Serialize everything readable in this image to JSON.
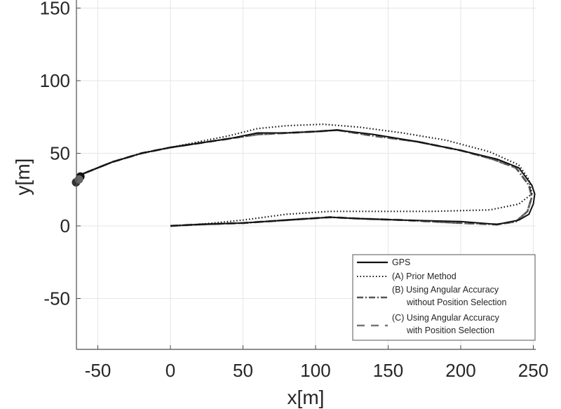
{
  "chart_data": {
    "type": "line",
    "title": "",
    "xlabel": "x[m]",
    "ylabel": "y[m]",
    "xlim": [
      -65,
      252
    ],
    "ylim": [
      -86,
      152
    ],
    "xticks": [
      -50,
      0,
      50,
      100,
      150,
      200,
      250
    ],
    "yticks": [
      -50,
      0,
      50,
      100,
      150
    ],
    "xtick_labels": [
      "-50",
      "0",
      "50",
      "100",
      "150",
      "200",
      "250"
    ],
    "ytick_labels": [
      "-50",
      "0",
      "50",
      "100",
      "150"
    ],
    "grid": true,
    "legend_position": "lower right",
    "series": [
      {
        "name": "GPS",
        "style": "solid",
        "color": "#111111",
        "points": [
          [
            0,
            0
          ],
          [
            20,
            1
          ],
          [
            50,
            2
          ],
          [
            80,
            4
          ],
          [
            110,
            6
          ],
          [
            130,
            5
          ],
          [
            160,
            4
          ],
          [
            200,
            3
          ],
          [
            225,
            1
          ],
          [
            240,
            4
          ],
          [
            247,
            8
          ],
          [
            250,
            15
          ],
          [
            251,
            22
          ],
          [
            249,
            28
          ],
          [
            240,
            40
          ],
          [
            225,
            46
          ],
          [
            200,
            52
          ],
          [
            170,
            58
          ],
          [
            140,
            63
          ],
          [
            115,
            66
          ],
          [
            100,
            65
          ],
          [
            80,
            64
          ],
          [
            60,
            64
          ],
          [
            40,
            60
          ],
          [
            20,
            57
          ],
          [
            0,
            54
          ],
          [
            -20,
            50
          ],
          [
            -40,
            44
          ],
          [
            -60,
            36
          ],
          [
            -62,
            35
          ]
        ]
      },
      {
        "name": "(A) Prior Method",
        "style": "dotted",
        "color": "#111111",
        "points": [
          [
            0,
            0
          ],
          [
            20,
            1
          ],
          [
            50,
            4
          ],
          [
            80,
            8
          ],
          [
            110,
            10
          ],
          [
            140,
            10
          ],
          [
            180,
            10
          ],
          [
            220,
            11
          ],
          [
            240,
            15
          ],
          [
            249,
            22
          ],
          [
            247,
            32
          ],
          [
            240,
            42
          ],
          [
            220,
            51
          ],
          [
            190,
            59
          ],
          [
            160,
            64
          ],
          [
            130,
            68
          ],
          [
            105,
            70
          ],
          [
            80,
            69
          ],
          [
            60,
            67
          ],
          [
            40,
            62
          ],
          [
            20,
            58
          ],
          [
            0,
            54
          ],
          [
            -20,
            50
          ],
          [
            -40,
            44
          ],
          [
            -60,
            36
          ],
          [
            -62,
            35
          ]
        ]
      },
      {
        "name": "(B) Using Angular Accuracy without Position Selection",
        "style": "dashdot",
        "color": "#555555",
        "points": [
          [
            0,
            0
          ],
          [
            20,
            1
          ],
          [
            50,
            2
          ],
          [
            80,
            4
          ],
          [
            110,
            6
          ],
          [
            130,
            5
          ],
          [
            160,
            4
          ],
          [
            200,
            2
          ],
          [
            225,
            1
          ],
          [
            238,
            3
          ],
          [
            246,
            10
          ],
          [
            249,
            20
          ],
          [
            247,
            28
          ],
          [
            238,
            40
          ],
          [
            222,
            46
          ],
          [
            200,
            52
          ],
          [
            170,
            58
          ],
          [
            140,
            62
          ],
          [
            115,
            66
          ],
          [
            100,
            65
          ],
          [
            80,
            64
          ],
          [
            60,
            63
          ],
          [
            40,
            60
          ],
          [
            20,
            57
          ],
          [
            0,
            54
          ],
          [
            -20,
            50
          ],
          [
            -40,
            44
          ],
          [
            -60,
            36
          ],
          [
            -64,
            33
          ]
        ]
      },
      {
        "name": "(C) Using Angular Accuracy with Position Selection",
        "style": "dashed",
        "color": "#777777",
        "points": [
          [
            0,
            0
          ],
          [
            20,
            1
          ],
          [
            50,
            2
          ],
          [
            80,
            4
          ],
          [
            110,
            6
          ],
          [
            130,
            5
          ],
          [
            160,
            4
          ],
          [
            200,
            2
          ],
          [
            225,
            1
          ],
          [
            238,
            3
          ],
          [
            246,
            10
          ],
          [
            249,
            20
          ],
          [
            247,
            28
          ],
          [
            238,
            40
          ],
          [
            222,
            46
          ],
          [
            200,
            52
          ],
          [
            170,
            58
          ],
          [
            140,
            62
          ],
          [
            115,
            66
          ],
          [
            100,
            65
          ],
          [
            80,
            64
          ],
          [
            60,
            63
          ],
          [
            40,
            60
          ],
          [
            20,
            57
          ],
          [
            0,
            54
          ],
          [
            -20,
            50
          ],
          [
            -40,
            44
          ],
          [
            -60,
            36
          ],
          [
            -64,
            33
          ]
        ]
      }
    ],
    "markers": [
      {
        "x": -65,
        "y": 30,
        "color": "#333333"
      },
      {
        "x": -62,
        "y": 34,
        "color": "#111111"
      },
      {
        "x": -63,
        "y": 32,
        "color": "#666666"
      }
    ]
  },
  "legend": {
    "items": [
      {
        "label_line1": "GPS",
        "label_line2": ""
      },
      {
        "label_line1": "(A) Prior Method",
        "label_line2": ""
      },
      {
        "label_line1": "(B) Using Angular Accuracy",
        "label_line2": "without Position Selection"
      },
      {
        "label_line1": "(C) Using Angular Accuracy",
        "label_line2": "with Position Selection"
      }
    ]
  }
}
